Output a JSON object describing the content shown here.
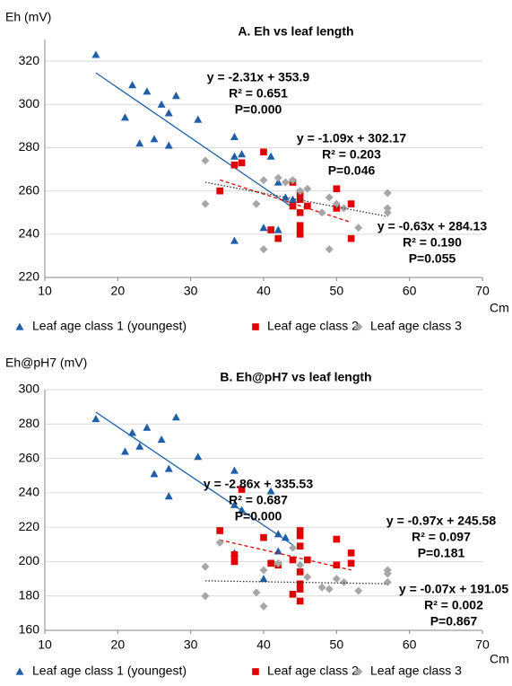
{
  "chart_data": [
    {
      "type": "scatter",
      "title": "A.  Eh vs leaf length",
      "y_label": "Eh (mV)",
      "x_label": "Cm",
      "xlim": [
        10,
        70
      ],
      "xticks": [
        10,
        20,
        30,
        40,
        50,
        60,
        70
      ],
      "ylim": [
        220,
        330
      ],
      "yticks": [
        220,
        240,
        260,
        280,
        300,
        320
      ],
      "grid": true,
      "series": [
        {
          "name": "Leaf age class 1 (youngest)",
          "marker": "triangle",
          "color": "#1f5fa8",
          "x": [
            17,
            22,
            21,
            24,
            23,
            25,
            26,
            27,
            27,
            28,
            31,
            36,
            36,
            37,
            36,
            40,
            41,
            42,
            42,
            43,
            44
          ],
          "values": [
            323,
            309,
            294,
            306,
            282,
            284,
            300,
            296,
            281,
            304,
            293,
            285,
            276,
            277,
            237,
            243,
            276,
            242,
            264,
            257,
            256
          ],
          "trend": {
            "style": "solid",
            "x": [
              17,
              44
            ],
            "values": [
              314.6,
              252.3
            ]
          }
        },
        {
          "name": "Leaf age class 2",
          "marker": "square",
          "color": "#e00000",
          "x": [
            34,
            36,
            37,
            40,
            41,
            42,
            44,
            44,
            45,
            45,
            45,
            45,
            45,
            45,
            46,
            50,
            50,
            52,
            52
          ],
          "values": [
            260,
            272,
            273,
            278,
            242,
            238,
            264,
            253,
            259,
            256,
            250,
            244,
            242,
            240,
            253,
            261,
            252,
            254,
            238
          ],
          "trend": {
            "style": "dashed",
            "x": [
              34,
              52
            ],
            "values": [
              265.1,
              245.5
            ]
          }
        },
        {
          "name": "Leaf age class 3",
          "marker": "diamond",
          "color": "#a6a6a6",
          "x": [
            32,
            32,
            39,
            40,
            40,
            42,
            43,
            44,
            45,
            46,
            48,
            49,
            49,
            50,
            51,
            53,
            57,
            57,
            57
          ],
          "values": [
            274,
            254,
            254,
            265,
            233,
            266,
            264,
            265,
            260,
            261,
            250,
            233,
            257,
            254,
            252,
            243,
            259,
            252,
            250
          ],
          "trend": {
            "style": "dotted",
            "x": [
              32,
              57
            ],
            "values": [
              264.0,
              248.2
            ]
          }
        }
      ],
      "annotations": [
        {
          "color": "#2e6bb0",
          "lines": [
            "y = -2.31x + 353.9",
            "R² = 0.651",
            "P=0.000"
          ]
        },
        {
          "color": "#e00000",
          "lines": [
            "y = -1.09x + 302.17",
            "R² = 0.203",
            "P=0.046"
          ]
        },
        {
          "color": "#000000",
          "lines": [
            "y = -0.63x + 284.13",
            "R² = 0.190",
            "P=0.055"
          ]
        }
      ]
    },
    {
      "type": "scatter",
      "title": "B.  Eh@pH7 vs leaf length",
      "y_label": "Eh@pH7 (mV)",
      "x_label": "Cm",
      "xlim": [
        10,
        70
      ],
      "xticks": [
        10,
        20,
        30,
        40,
        50,
        60,
        70
      ],
      "ylim": [
        160,
        300
      ],
      "yticks": [
        160,
        180,
        200,
        220,
        240,
        260,
        280,
        300
      ],
      "grid": true,
      "series": [
        {
          "name": "Leaf age class 1 (youngest)",
          "marker": "triangle",
          "color": "#1f5fa8",
          "x": [
            17,
            21,
            22,
            23,
            24,
            25,
            26,
            27,
            27,
            28,
            31,
            36,
            36,
            37,
            36,
            40,
            41,
            42,
            43,
            42
          ],
          "values": [
            283,
            264,
            275,
            267,
            278,
            251,
            271,
            254,
            238,
            284,
            261,
            253,
            233,
            230,
            205,
            190,
            241,
            216,
            214,
            206
          ],
          "trend": {
            "style": "solid",
            "x": [
              17,
              44
            ],
            "values": [
              286.9,
              209.7
            ]
          }
        },
        {
          "name": "Leaf age class 2",
          "marker": "square",
          "color": "#e00000",
          "x": [
            34,
            36,
            36,
            37,
            40,
            41,
            42,
            44,
            44,
            45,
            45,
            45,
            45,
            45,
            45,
            45,
            46,
            50,
            50,
            52,
            52
          ],
          "values": [
            218,
            204,
            200,
            242,
            214,
            199,
            198,
            201,
            181,
            218,
            215,
            209,
            194,
            187,
            184,
            177,
            201,
            213,
            198,
            205,
            199
          ],
          "trend": {
            "style": "dashed",
            "x": [
              34,
              52
            ],
            "values": [
              212.6,
              195.1
            ]
          }
        },
        {
          "name": "Leaf age class 3",
          "marker": "diamond",
          "color": "#a6a6a6",
          "x": [
            32,
            32,
            34,
            39,
            40,
            40,
            42,
            44,
            45,
            46,
            48,
            49,
            50,
            51,
            53,
            57,
            57,
            57
          ],
          "values": [
            197,
            180,
            211,
            182,
            195,
            174,
            199,
            208,
            198,
            191,
            185,
            184,
            190,
            188,
            183,
            195,
            193,
            188
          ],
          "trend": {
            "style": "dotted",
            "x": [
              32,
              57
            ],
            "values": [
              188.8,
              187.1
            ]
          }
        }
      ],
      "annotations": [
        {
          "color": "#2e6bb0",
          "lines": [
            "y = -2.86x + 335.53",
            "R² = 0.687",
            "P=0.000"
          ]
        },
        {
          "color": "#e00000",
          "lines": [
            "y = -0.97x + 245.58",
            "R² = 0.097",
            "P=0.181"
          ]
        },
        {
          "color": "#000000",
          "lines": [
            "y = -0.07x + 191.05",
            "R² = 0.002",
            "P=0.867"
          ]
        }
      ]
    }
  ]
}
